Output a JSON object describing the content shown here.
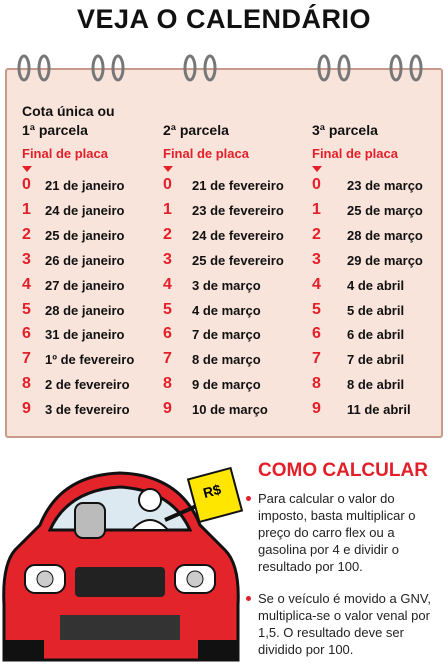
{
  "title": "VEJA O CALENDÁRIO",
  "calendar": {
    "plate_label": "Final de placa",
    "columns": [
      {
        "header": [
          "Cota única ou",
          "1ª parcela"
        ],
        "rows": [
          {
            "digit": "0",
            "date": "21 de janeiro"
          },
          {
            "digit": "1",
            "date": "24 de janeiro"
          },
          {
            "digit": "2",
            "date": "25 de janeiro"
          },
          {
            "digit": "3",
            "date": "26 de janeiro"
          },
          {
            "digit": "4",
            "date": "27 de janeiro"
          },
          {
            "digit": "5",
            "date": "28 de janeiro"
          },
          {
            "digit": "6",
            "date": "31 de janeiro"
          },
          {
            "digit": "7",
            "date": "1º de fevereiro"
          },
          {
            "digit": "8",
            "date": "2 de fevereiro"
          },
          {
            "digit": "9",
            "date": "3 de fevereiro"
          }
        ]
      },
      {
        "header": [
          "2ª parcela"
        ],
        "rows": [
          {
            "digit": "0",
            "date": "21 de fevereiro"
          },
          {
            "digit": "1",
            "date": "23 de fevereiro"
          },
          {
            "digit": "2",
            "date": "24 de fevereiro"
          },
          {
            "digit": "3",
            "date": "25 de fevereiro"
          },
          {
            "digit": "4",
            "date": "3 de março"
          },
          {
            "digit": "5",
            "date": "4 de março"
          },
          {
            "digit": "6",
            "date": "7 de março"
          },
          {
            "digit": "7",
            "date": "8 de março"
          },
          {
            "digit": "8",
            "date": "9 de março"
          },
          {
            "digit": "9",
            "date": "10 de março"
          }
        ]
      },
      {
        "header": [
          "3ª parcela"
        ],
        "rows": [
          {
            "digit": "0",
            "date": "23 de março"
          },
          {
            "digit": "1",
            "date": "25 de março"
          },
          {
            "digit": "2",
            "date": "28 de março"
          },
          {
            "digit": "3",
            "date": "29 de março"
          },
          {
            "digit": "4",
            "date": "4 de abril"
          },
          {
            "digit": "5",
            "date": "5 de abril"
          },
          {
            "digit": "6",
            "date": "6 de abril"
          },
          {
            "digit": "7",
            "date": "7 de abril"
          },
          {
            "digit": "8",
            "date": "8 de abril"
          },
          {
            "digit": "9",
            "date": "11 de abril"
          }
        ]
      }
    ]
  },
  "how_to": {
    "title": "COMO CALCULAR",
    "sign": "R$",
    "bullets": [
      "Para calcular o valor do imposto, basta multiplicar o preço do carro flex ou a gasolina por 4 e dividir o resultado por 100.",
      "Se o veículo é movido a GNV, multiplica-se o valor venal por 1,5. O resultado deve ser dividido por 100."
    ]
  }
}
